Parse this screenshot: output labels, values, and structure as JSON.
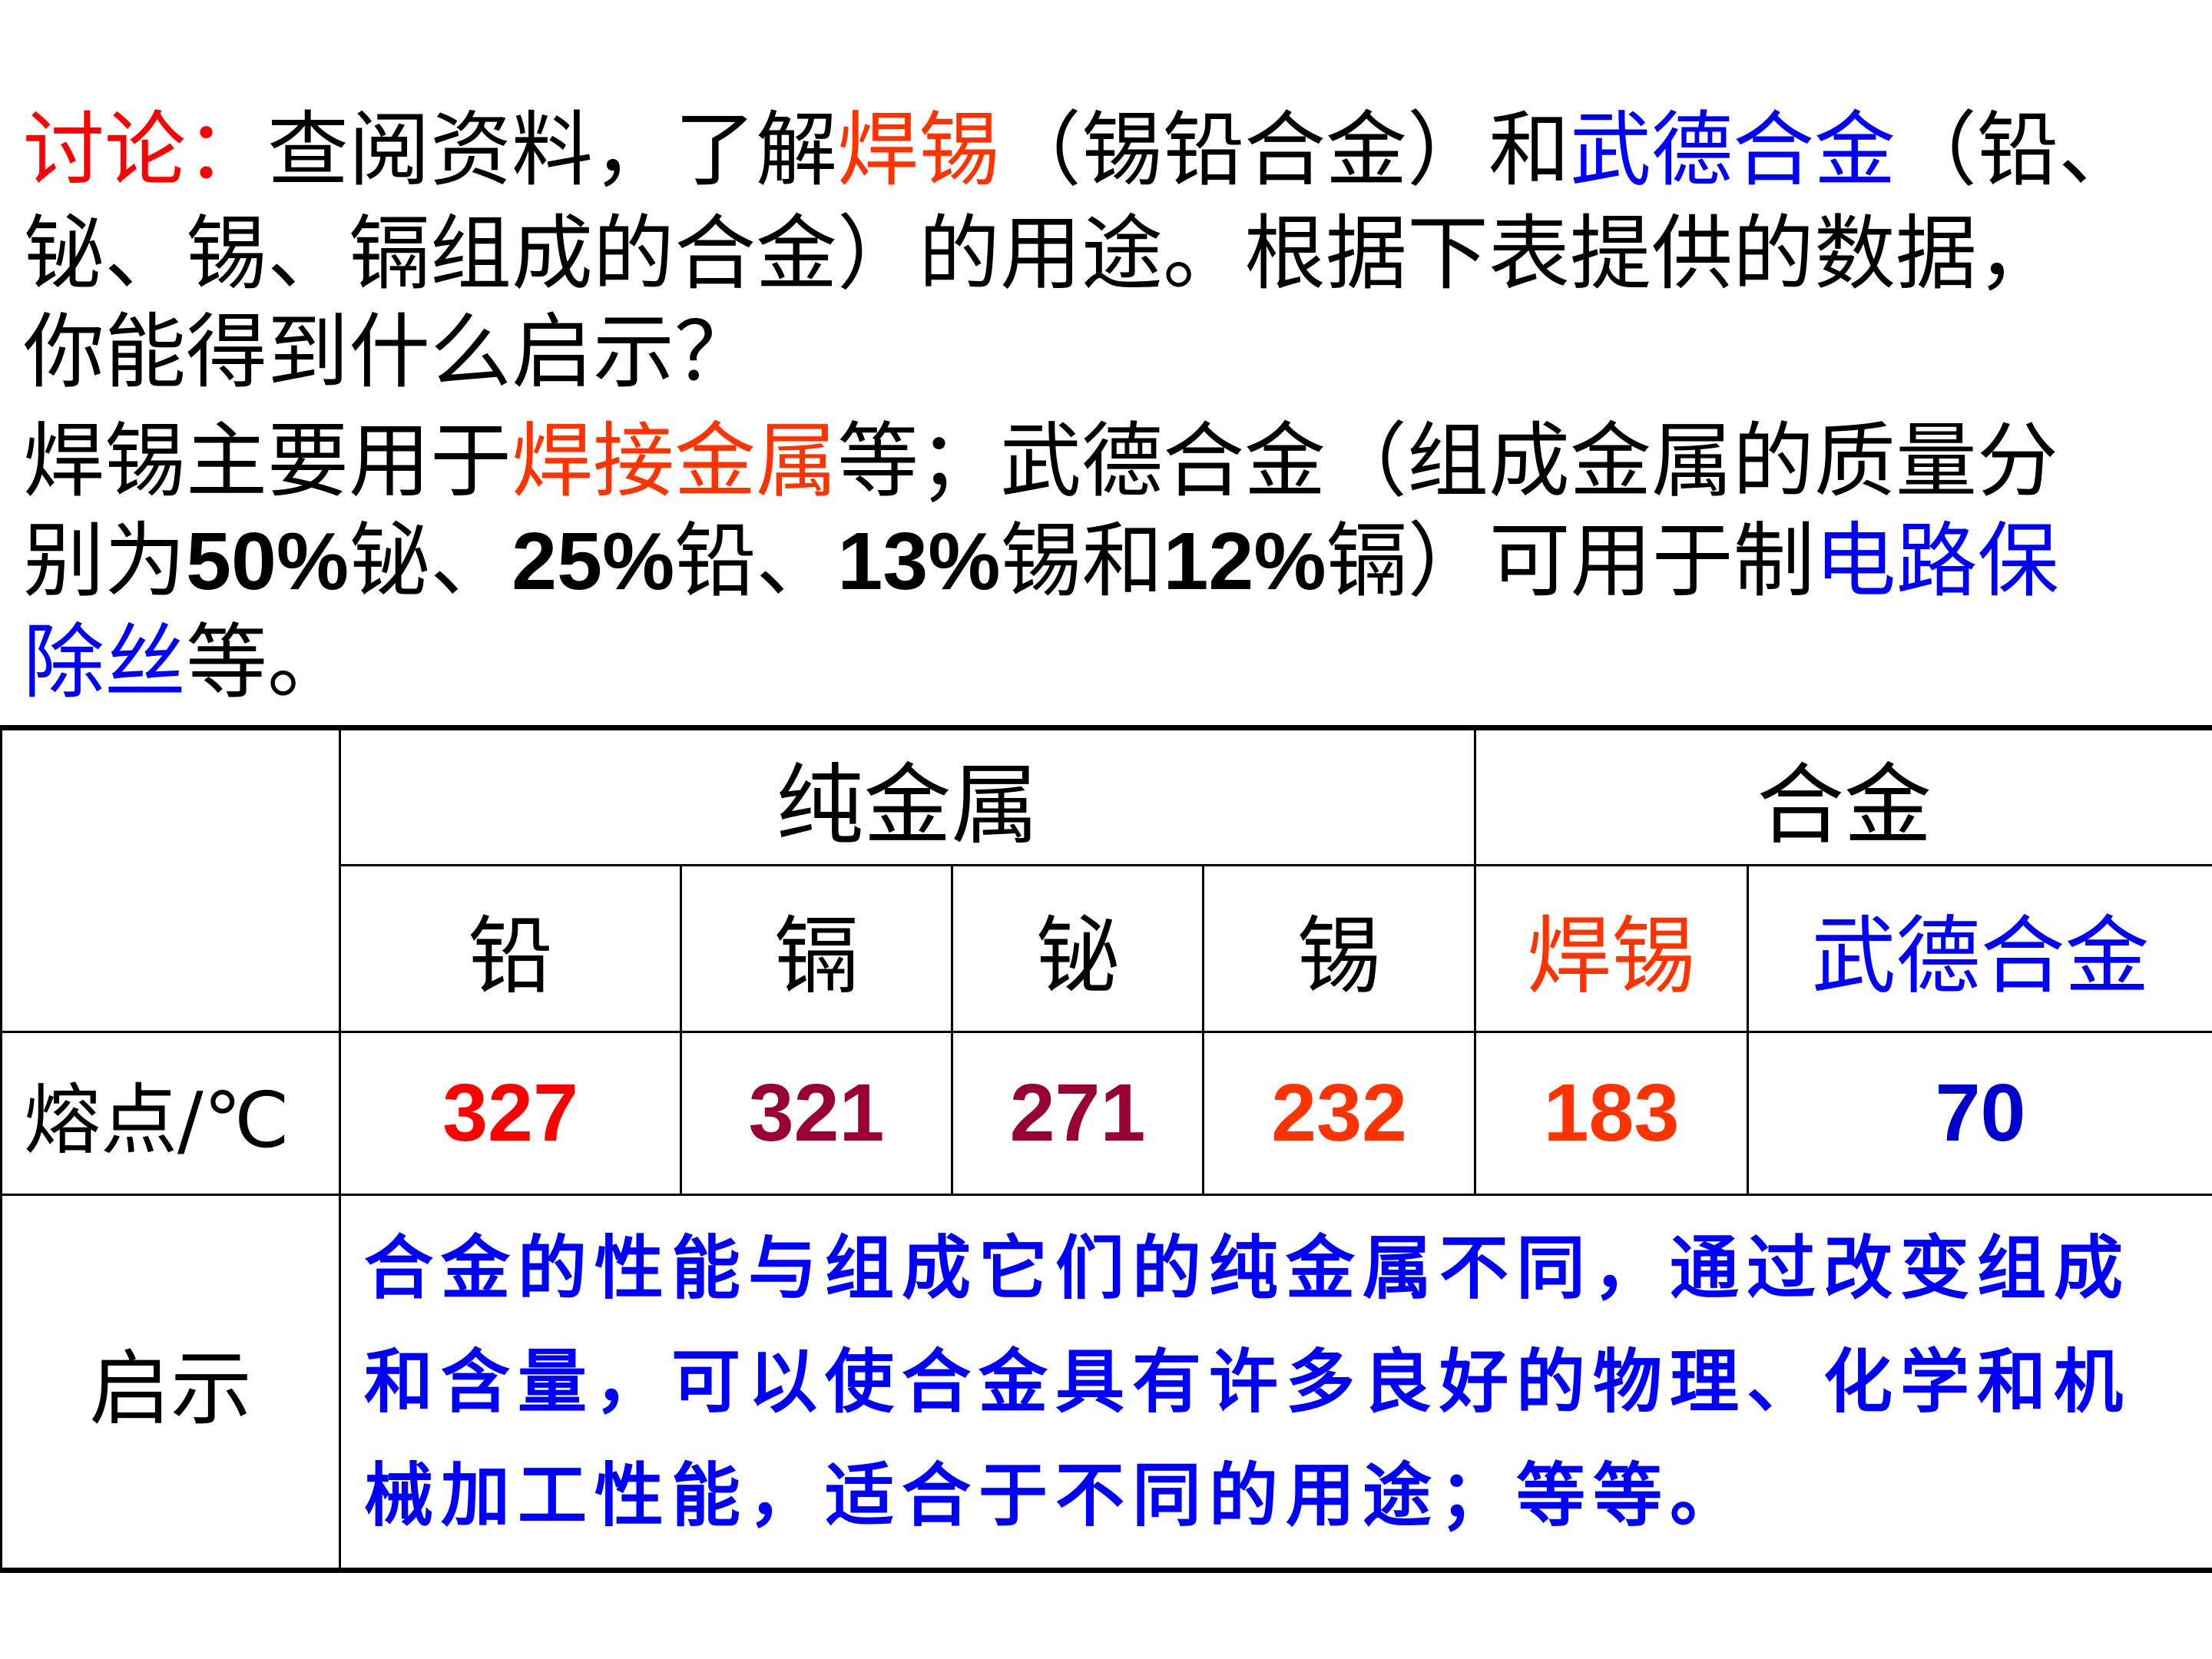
{
  "intro": {
    "lines": [
      [
        {
          "t": "讨论：",
          "c": "#ff0000"
        },
        {
          "t": "查阅资料，了解",
          "c": "#000000"
        },
        {
          "t": "焊锡",
          "c": "#ff3300"
        },
        {
          "t": "（锡铅合金）和",
          "c": "#000000"
        },
        {
          "t": "武德合金",
          "c": "#0000ff"
        },
        {
          "t": "（铅、",
          "c": "#000000"
        }
      ],
      [
        {
          "t": "铋、锡、镉组成的合金）的用途。根据下表提供的数据，",
          "c": "#000000"
        }
      ],
      [
        {
          "t": "你能得到什么启示？",
          "c": "#000000"
        }
      ],
      [
        {
          "t": "焊锡主要用于",
          "c": "#000000"
        },
        {
          "t": "焊接金属",
          "c": "#ff3300"
        },
        {
          "t": "等；武德合金（组成金属的质量分",
          "c": "#000000"
        }
      ],
      [
        {
          "t": "别为",
          "c": "#000000"
        },
        {
          "t": "50%",
          "c": "#000000",
          "num": true
        },
        {
          "t": "铋、",
          "c": "#000000"
        },
        {
          "t": "25%",
          "c": "#000000",
          "num": true
        },
        {
          "t": "铅、",
          "c": "#000000"
        },
        {
          "t": "13%",
          "c": "#000000",
          "num": true
        },
        {
          "t": "锡和",
          "c": "#000000"
        },
        {
          "t": "12%",
          "c": "#000000",
          "num": true
        },
        {
          "t": "镉）可用于制",
          "c": "#000000"
        },
        {
          "t": "电路保",
          "c": "#0000ff"
        }
      ],
      [
        {
          "t": "除丝",
          "c": "#0000ff"
        },
        {
          "t": "等。",
          "c": "#000000"
        }
      ]
    ]
  },
  "table": {
    "group_pure": "纯金属",
    "group_alloy": "合金",
    "columns": [
      {
        "name": "铅",
        "color": "#000000",
        "mp": "327",
        "mp_color": "#ff0000"
      },
      {
        "name": "镉",
        "color": "#000000",
        "mp": "321",
        "mp_color": "#990033"
      },
      {
        "name": "铋",
        "color": "#000000",
        "mp": "271",
        "mp_color": "#990033"
      },
      {
        "name": "锡",
        "color": "#000000",
        "mp": "232",
        "mp_color": "#ff3300"
      },
      {
        "name": "焊锡",
        "color": "#ff3300",
        "mp": "183",
        "mp_color": "#ff3300"
      },
      {
        "name": "武德合金",
        "color": "#0000ff",
        "mp": "70",
        "mp_color": "#0000cc"
      }
    ],
    "melting_point_label": "熔点/℃",
    "insight_label": "启示",
    "insight_text": "合金的性能与组成它们的纯金属不同，通过改变组成和含量，可以使合金具有许多良好的物理、化学和机械加工性能，适合于不同的用途；等等。",
    "insight_color": "#0000ff"
  }
}
